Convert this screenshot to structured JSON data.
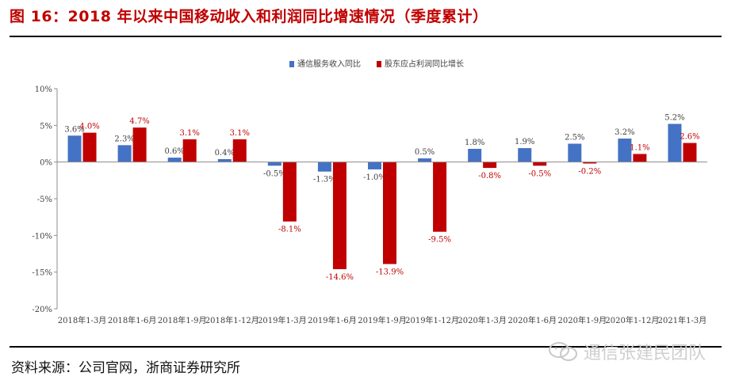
{
  "figure": {
    "title": "图 16：2018 年以来中国移动收入和利润同比增速情况（季度累计）",
    "source": "资料来源：公司官网，浙商证券研究所",
    "watermark": "通信张建民团队",
    "watermark_icon": "wechat-icon"
  },
  "chart_data": {
    "type": "bar",
    "title": "",
    "xlabel": "",
    "ylabel": "",
    "ylim": [
      -20,
      10
    ],
    "yticks": [
      10,
      5,
      0,
      -5,
      -10,
      -15,
      -20
    ],
    "ytick_labels": [
      "10%",
      "5%",
      "0%",
      "-5%",
      "-10%",
      "-15%",
      "-20%"
    ],
    "legend_position": "top-center",
    "categories": [
      "2018年1-3月",
      "2018年1-6月",
      "2018年1-9月",
      "2018年1-12月",
      "2019年1-3月",
      "2019年1-6月",
      "2019年1-9月",
      "2019年1-12月",
      "2020年1-3月",
      "2020年1-6月",
      "2020年1-9月",
      "2020年1-12月",
      "2021年1-3月"
    ],
    "series": [
      {
        "name": "通信服务收入同比",
        "color": "#4472c4",
        "label_color": "#404040",
        "values": [
          3.6,
          2.3,
          0.6,
          0.4,
          -0.5,
          -1.3,
          -1.0,
          0.5,
          1.8,
          1.9,
          2.5,
          3.2,
          5.2
        ],
        "labels": [
          "3.6%",
          "2.3%",
          "0.6%",
          "0.4%",
          "-0.5%",
          "-1.3%",
          "-1.0%",
          "0.5%",
          "1.8%",
          "1.9%",
          "2.5%",
          "3.2%",
          "5.2%"
        ]
      },
      {
        "name": "股东应占利润同比增长",
        "color": "#c00000",
        "label_color": "#c00000",
        "values": [
          4.0,
          4.7,
          3.1,
          3.1,
          -8.1,
          -14.6,
          -13.9,
          -9.5,
          -0.8,
          -0.5,
          -0.2,
          1.1,
          2.6
        ],
        "labels": [
          "4.0%",
          "4.7%",
          "3.1%",
          "3.1%",
          "-8.1%",
          "-14.6%",
          "-13.9%",
          "-9.5%",
          "-0.8%",
          "-0.5%",
          "-0.2%",
          "1.1%",
          "2.6%"
        ]
      }
    ]
  }
}
